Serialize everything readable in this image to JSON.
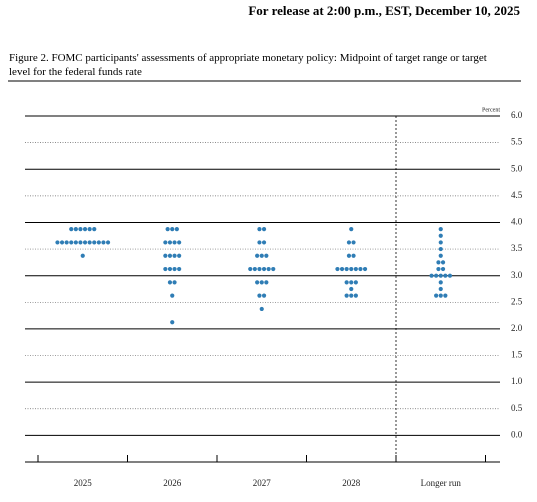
{
  "header": "For release at 2:00 p.m., EST, December 10, 2025",
  "chart_data": {
    "type": "dot",
    "title": "Figure 2. FOMC participants' assessments of appropriate monetary policy: Midpoint of target range or target level for the federal funds rate",
    "y_unit_label": "Percent",
    "categories": [
      "2025",
      "2026",
      "2027",
      "2028",
      "Longer run"
    ],
    "dots": [
      [
        {
          "value": 3.875,
          "count": 6
        },
        {
          "value": 3.625,
          "count": 12
        },
        {
          "value": 3.375,
          "count": 1
        }
      ],
      [
        {
          "value": 3.875,
          "count": 3
        },
        {
          "value": 3.625,
          "count": 4
        },
        {
          "value": 3.375,
          "count": 4
        },
        {
          "value": 3.125,
          "count": 4
        },
        {
          "value": 2.875,
          "count": 2
        },
        {
          "value": 2.625,
          "count": 1
        },
        {
          "value": 2.125,
          "count": 1
        }
      ],
      [
        {
          "value": 3.875,
          "count": 2
        },
        {
          "value": 3.625,
          "count": 2
        },
        {
          "value": 3.375,
          "count": 3
        },
        {
          "value": 3.125,
          "count": 6
        },
        {
          "value": 2.875,
          "count": 3
        },
        {
          "value": 2.625,
          "count": 2
        },
        {
          "value": 2.375,
          "count": 1
        }
      ],
      [
        {
          "value": 3.875,
          "count": 1
        },
        {
          "value": 3.625,
          "count": 2
        },
        {
          "value": 3.375,
          "count": 2
        },
        {
          "value": 3.125,
          "count": 7
        },
        {
          "value": 2.875,
          "count": 3
        },
        {
          "value": 2.75,
          "count": 1
        },
        {
          "value": 2.625,
          "count": 3
        }
      ],
      [
        {
          "value": 3.875,
          "count": 1
        },
        {
          "value": 3.75,
          "count": 1
        },
        {
          "value": 3.625,
          "count": 1
        },
        {
          "value": 3.5,
          "count": 1
        },
        {
          "value": 3.375,
          "count": 1
        },
        {
          "value": 3.25,
          "count": 2
        },
        {
          "value": 3.125,
          "count": 2
        },
        {
          "value": 3.0,
          "count": 5
        },
        {
          "value": 2.875,
          "count": 1
        },
        {
          "value": 2.75,
          "count": 1
        },
        {
          "value": 2.625,
          "count": 3
        }
      ]
    ],
    "color": "#2f7db5",
    "ylim": [
      -0.5,
      6.0
    ],
    "yticks": [
      {
        "value": 6,
        "label": "6.0"
      },
      {
        "value": 5.5,
        "label": "5.5"
      },
      {
        "value": 5,
        "label": "5.0"
      },
      {
        "value": 4.5,
        "label": "4.5"
      },
      {
        "value": 4,
        "label": "4.0"
      },
      {
        "value": 3.5,
        "label": "3.5"
      },
      {
        "value": 3,
        "label": "3.0"
      },
      {
        "value": 2.5,
        "label": "2.5"
      },
      {
        "value": 2,
        "label": "2.0"
      },
      {
        "value": 1.5,
        "label": "1.5"
      },
      {
        "value": 1,
        "label": "1.0"
      },
      {
        "value": 0.5,
        "label": "0.5"
      },
      {
        "value": 0,
        "label": "0.0"
      }
    ],
    "grid": true
  }
}
